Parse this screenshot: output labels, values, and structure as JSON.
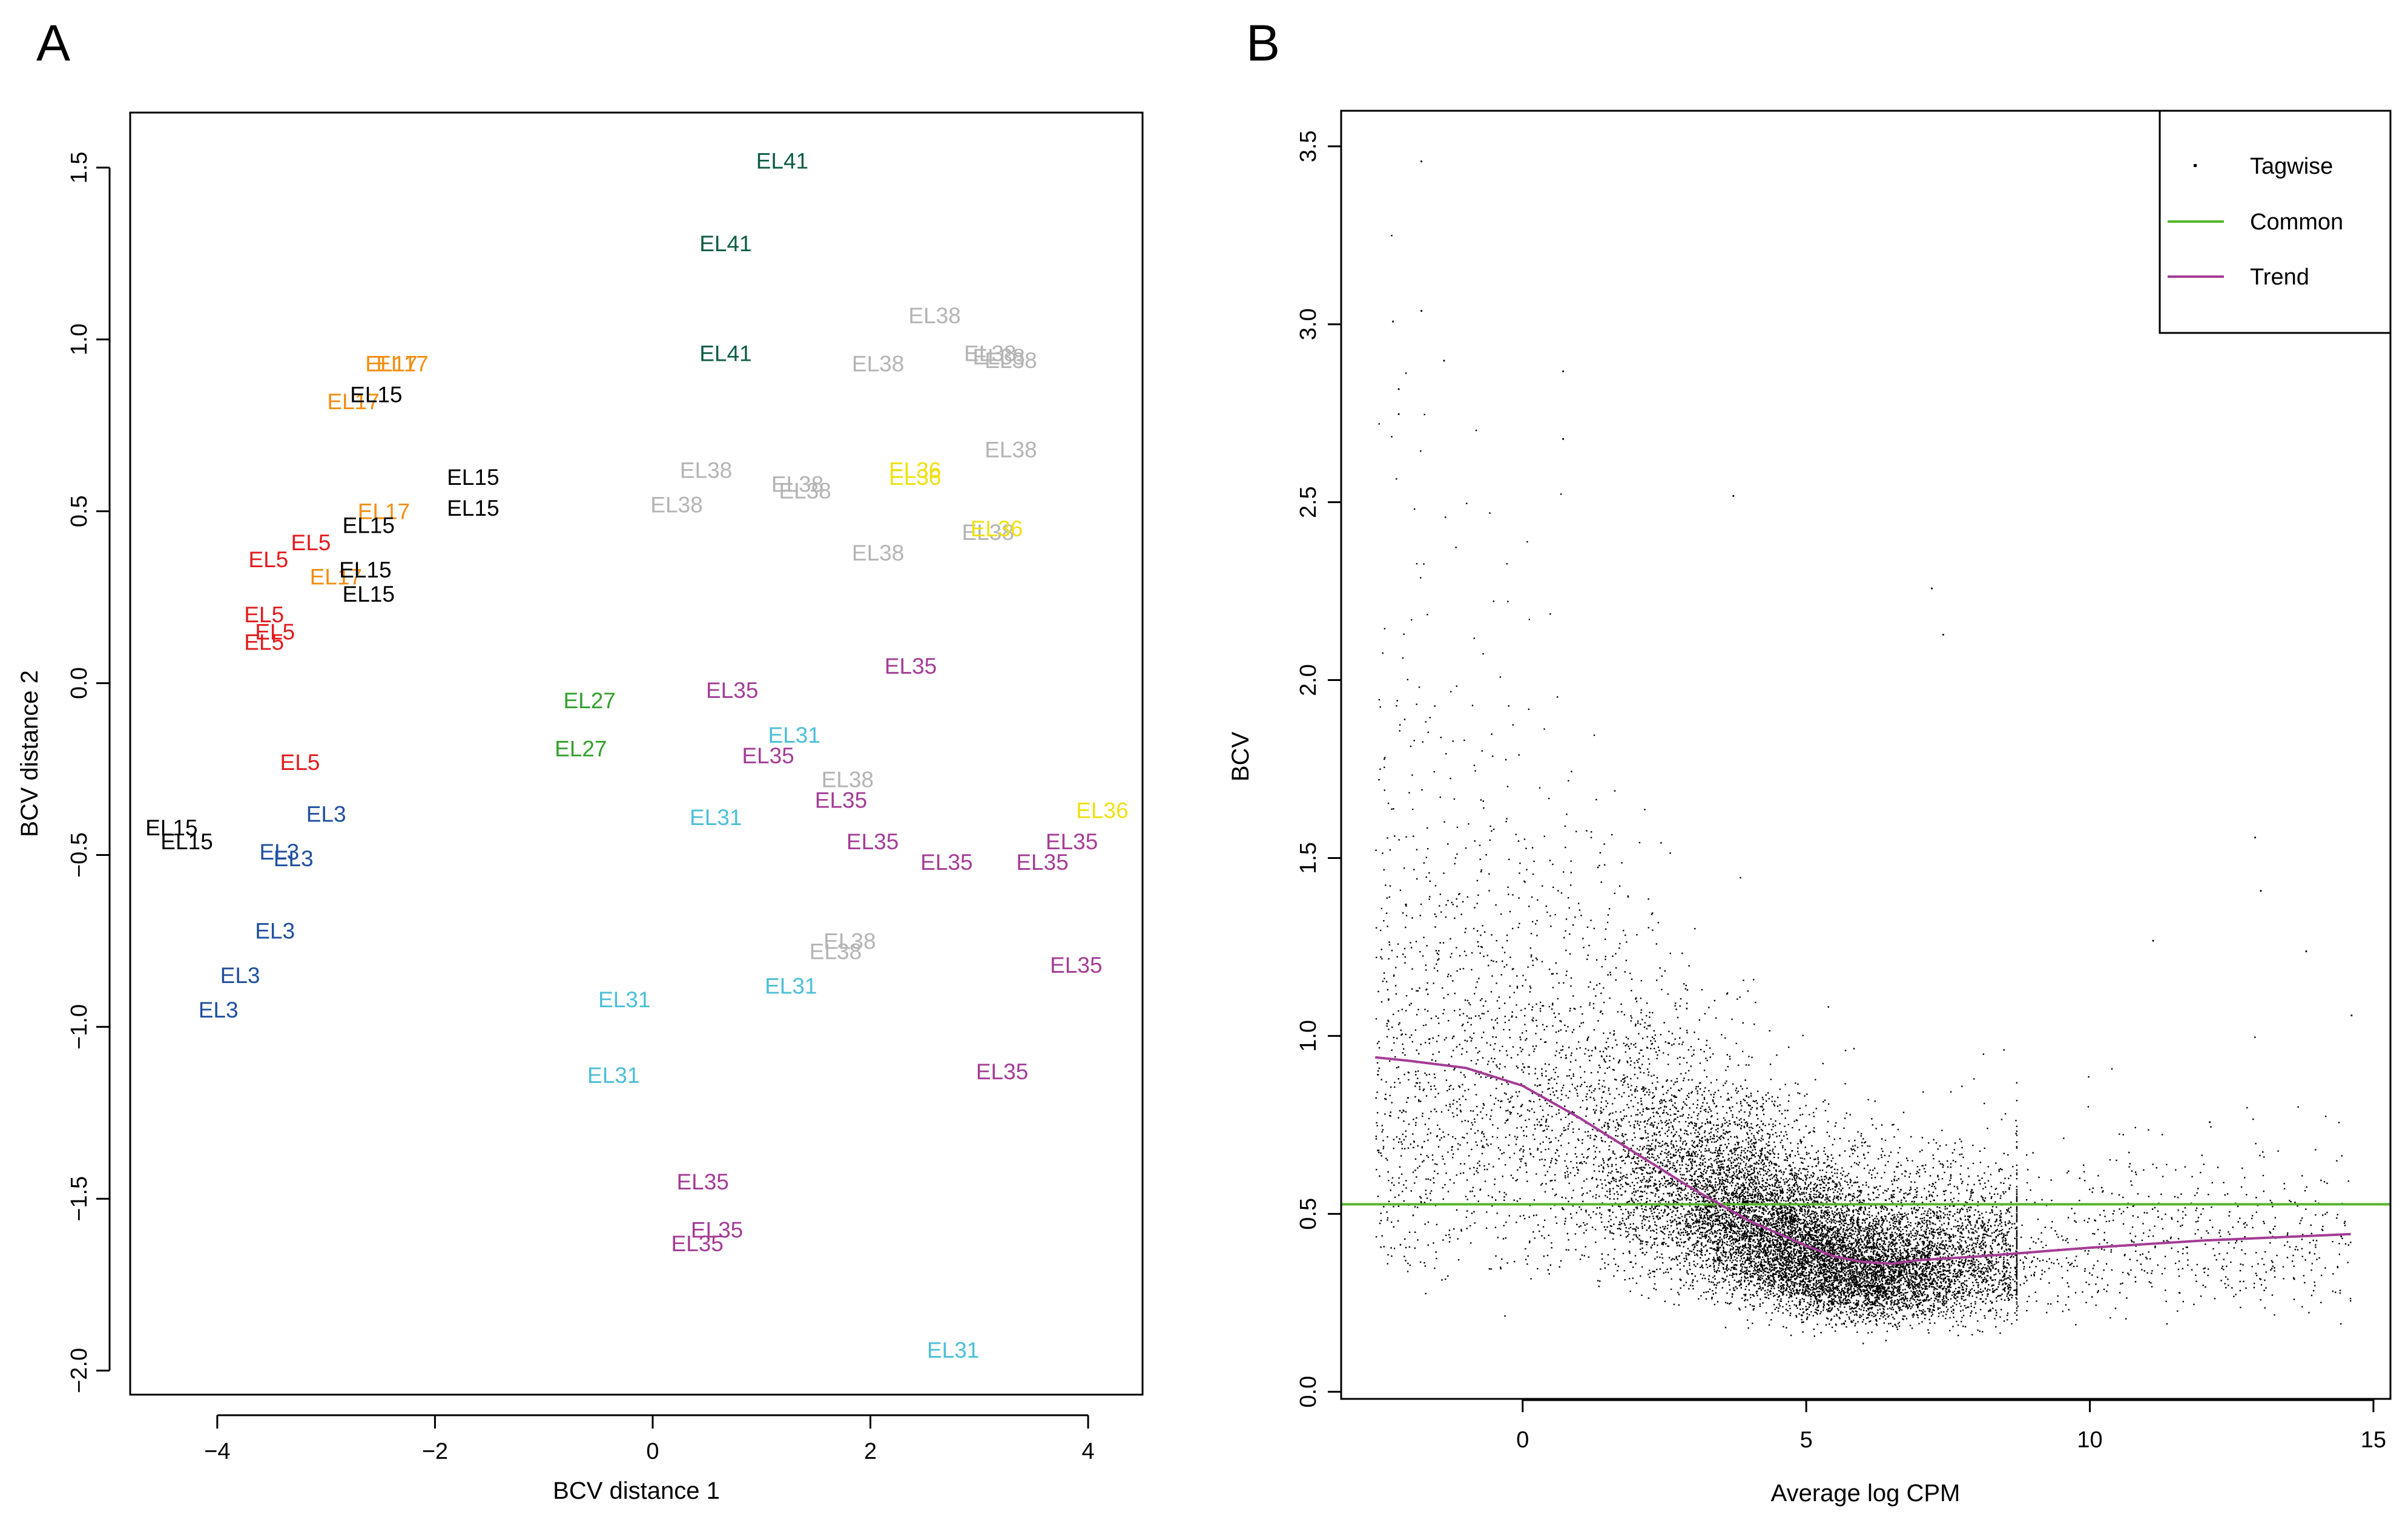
{
  "panels": {
    "a": {
      "letter": "A"
    },
    "b": {
      "letter": "B"
    }
  },
  "colors": {
    "EL3": "#1f4fa0",
    "EL5": "#e31a1c",
    "EL15": "#000000",
    "EL17": "#f28e10",
    "EL27": "#33a02c",
    "EL31": "#4cbfd9",
    "EL35": "#a43c96",
    "EL36": "#f0e010",
    "EL38": "#b4b4b4",
    "EL41": "#0d5c45",
    "tagwise": "#000000",
    "common": "#55b52b",
    "trend": "#a43c96"
  },
  "chart_data": [
    {
      "type": "scatter",
      "panel": "A",
      "xlabel": "BCV distance 1",
      "ylabel": "BCV distance 2",
      "xlim": [
        -4.8,
        4.5
      ],
      "ylim": [
        -2.07,
        1.66
      ],
      "xticks": [
        "−4",
        "−2",
        "0",
        "2",
        "4"
      ],
      "xtick_values": [
        -4,
        -2,
        0,
        2,
        4
      ],
      "yticks": [
        "−2.0",
        "−1.5",
        "−1.0",
        "−0.5",
        "0.0",
        "0.5",
        "1.0",
        "1.5"
      ],
      "ytick_values": [
        -2.0,
        -1.5,
        -1.0,
        -0.5,
        0.0,
        0.5,
        1.0,
        1.5
      ],
      "points": [
        {
          "label": "EL41",
          "x": 1.19,
          "y": 1.52
        },
        {
          "label": "EL41",
          "x": 0.67,
          "y": 1.28
        },
        {
          "label": "EL41",
          "x": 0.67,
          "y": 0.96
        },
        {
          "label": "EL38",
          "x": 2.59,
          "y": 1.07
        },
        {
          "label": "EL38",
          "x": 2.07,
          "y": 0.93
        },
        {
          "label": "EL38",
          "x": 3.1,
          "y": 0.96
        },
        {
          "label": "EL38",
          "x": 3.18,
          "y": 0.95
        },
        {
          "label": "EL38",
          "x": 3.29,
          "y": 0.94
        },
        {
          "label": "EL38",
          "x": 3.29,
          "y": 0.68
        },
        {
          "label": "EL38",
          "x": 0.49,
          "y": 0.62
        },
        {
          "label": "EL38",
          "x": 0.22,
          "y": 0.52
        },
        {
          "label": "EL38",
          "x": 1.33,
          "y": 0.58
        },
        {
          "label": "EL38",
          "x": 1.4,
          "y": 0.56
        },
        {
          "label": "EL38",
          "x": 2.07,
          "y": 0.38
        },
        {
          "label": "EL38",
          "x": 3.08,
          "y": 0.44
        },
        {
          "label": "EL38",
          "x": 1.79,
          "y": -0.28
        },
        {
          "label": "EL38",
          "x": 1.81,
          "y": -0.75
        },
        {
          "label": "EL38",
          "x": 1.68,
          "y": -0.78
        },
        {
          "label": "EL36",
          "x": 2.41,
          "y": 0.62
        },
        {
          "label": "EL36",
          "x": 2.41,
          "y": 0.6
        },
        {
          "label": "EL36",
          "x": 3.16,
          "y": 0.45
        },
        {
          "label": "EL36",
          "x": 4.13,
          "y": -0.37
        },
        {
          "label": "EL17",
          "x": -2.4,
          "y": 0.93
        },
        {
          "label": "EL17",
          "x": -2.3,
          "y": 0.93
        },
        {
          "label": "EL17",
          "x": -2.75,
          "y": 0.82
        },
        {
          "label": "EL17",
          "x": -2.47,
          "y": 0.5
        },
        {
          "label": "EL17",
          "x": -2.91,
          "y": 0.31
        },
        {
          "label": "EL15",
          "x": -2.54,
          "y": 0.84
        },
        {
          "label": "EL15",
          "x": -1.65,
          "y": 0.6
        },
        {
          "label": "EL15",
          "x": -1.65,
          "y": 0.51
        },
        {
          "label": "EL15",
          "x": -2.61,
          "y": 0.46
        },
        {
          "label": "EL15",
          "x": -2.64,
          "y": 0.33
        },
        {
          "label": "EL15",
          "x": -2.61,
          "y": 0.26
        },
        {
          "label": "EL15",
          "x": -4.42,
          "y": -0.42
        },
        {
          "label": "EL15",
          "x": -4.28,
          "y": -0.46
        },
        {
          "label": "EL5",
          "x": -3.14,
          "y": 0.41
        },
        {
          "label": "EL5",
          "x": -3.53,
          "y": 0.36
        },
        {
          "label": "EL5",
          "x": -3.57,
          "y": 0.2
        },
        {
          "label": "EL5",
          "x": -3.47,
          "y": 0.15
        },
        {
          "label": "EL5",
          "x": -3.57,
          "y": 0.12
        },
        {
          "label": "EL5",
          "x": -3.24,
          "y": -0.23
        },
        {
          "label": "EL3",
          "x": -3.0,
          "y": -0.38
        },
        {
          "label": "EL3",
          "x": -3.43,
          "y": -0.49
        },
        {
          "label": "EL3",
          "x": -3.3,
          "y": -0.51
        },
        {
          "label": "EL3",
          "x": -3.47,
          "y": -0.72
        },
        {
          "label": "EL3",
          "x": -3.79,
          "y": -0.85
        },
        {
          "label": "EL3",
          "x": -3.99,
          "y": -0.95
        },
        {
          "label": "EL27",
          "x": -0.58,
          "y": -0.05
        },
        {
          "label": "EL27",
          "x": -0.66,
          "y": -0.19
        },
        {
          "label": "EL35",
          "x": 0.73,
          "y": -0.02
        },
        {
          "label": "EL35",
          "x": 2.37,
          "y": 0.05
        },
        {
          "label": "EL35",
          "x": 1.06,
          "y": -0.21
        },
        {
          "label": "EL35",
          "x": 1.73,
          "y": -0.34
        },
        {
          "label": "EL35",
          "x": 2.02,
          "y": -0.46
        },
        {
          "label": "EL35",
          "x": 2.7,
          "y": -0.52
        },
        {
          "label": "EL35",
          "x": 3.58,
          "y": -0.52
        },
        {
          "label": "EL35",
          "x": 3.85,
          "y": -0.46
        },
        {
          "label": "EL35",
          "x": 3.89,
          "y": -0.82
        },
        {
          "label": "EL35",
          "x": 3.21,
          "y": -1.13
        },
        {
          "label": "EL35",
          "x": 0.46,
          "y": -1.45
        },
        {
          "label": "EL35",
          "x": 0.59,
          "y": -1.59
        },
        {
          "label": "EL35",
          "x": 0.41,
          "y": -1.63
        },
        {
          "label": "EL31",
          "x": 1.3,
          "y": -0.15
        },
        {
          "label": "EL31",
          "x": 0.58,
          "y": -0.39
        },
        {
          "label": "EL31",
          "x": 1.27,
          "y": -0.88
        },
        {
          "label": "EL31",
          "x": -0.26,
          "y": -0.92
        },
        {
          "label": "EL31",
          "x": -0.36,
          "y": -1.14
        },
        {
          "label": "EL31",
          "x": 2.76,
          "y": -1.94
        }
      ]
    },
    {
      "type": "scatter",
      "panel": "B",
      "xlabel": "Average log CPM",
      "ylabel": "BCV",
      "xlim": [
        -3.2,
        15.3
      ],
      "ylim": [
        -0.02,
        3.6
      ],
      "xticks": [
        "0",
        "5",
        "10",
        "15"
      ],
      "xtick_values": [
        0,
        5,
        10,
        15
      ],
      "yticks": [
        "0.0",
        "0.5",
        "1.0",
        "1.5",
        "2.0",
        "2.5",
        "3.0",
        "3.5"
      ],
      "ytick_values": [
        0.0,
        0.5,
        1.0,
        1.5,
        2.0,
        2.5,
        3.0,
        3.5
      ],
      "legend": {
        "position": "top-right",
        "entries": [
          "Tagwise",
          "Common",
          "Trend"
        ]
      },
      "series": [
        {
          "name": "Tagwise",
          "kind": "points",
          "approx_count": 14000,
          "outliers": [
            {
              "x": -1.8,
              "y": 3.46
            },
            {
              "x": -1.8,
              "y": 3.04
            },
            {
              "x": -2.3,
              "y": 3.01
            },
            {
              "x": -2.2,
              "y": 2.82
            },
            {
              "x": -2.2,
              "y": 2.75
            },
            {
              "x": -1.4,
              "y": 2.9
            },
            {
              "x": 0.7,
              "y": 2.87
            },
            {
              "x": 0.7,
              "y": 2.68
            },
            {
              "x": 3.7,
              "y": 2.52
            },
            {
              "x": 7.2,
              "y": 2.26
            },
            {
              "x": 7.4,
              "y": 2.13
            },
            {
              "x": 12.9,
              "y": 1.56
            },
            {
              "x": 13.0,
              "y": 1.41
            },
            {
              "x": 13.8,
              "y": 1.24
            },
            {
              "x": 14.6,
              "y": 1.06
            },
            {
              "x": 11.1,
              "y": 1.27
            },
            {
              "x": 12.1,
              "y": 0.76
            }
          ]
        },
        {
          "name": "Common",
          "kind": "hline",
          "y": 0.527
        },
        {
          "name": "Trend",
          "kind": "line",
          "x": [
            -2.6,
            -2.0,
            -1.0,
            0.0,
            1.0,
            2.0,
            3.0,
            4.0,
            5.0,
            5.5,
            6.0,
            6.5,
            7.0,
            8.0,
            10.0,
            12.0,
            14.6
          ],
          "y": [
            0.94,
            0.93,
            0.91,
            0.86,
            0.77,
            0.67,
            0.57,
            0.48,
            0.41,
            0.38,
            0.365,
            0.36,
            0.37,
            0.38,
            0.405,
            0.425,
            0.443
          ]
        }
      ]
    }
  ]
}
